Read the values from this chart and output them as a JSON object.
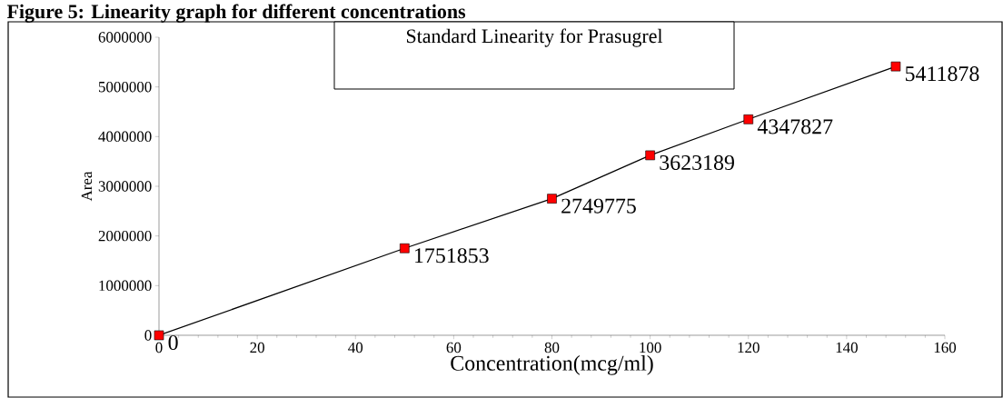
{
  "chart_data": {
    "type": "line",
    "title": "Standard Linearity for Prasugrel",
    "xlabel": "Concentration(mcg/ml)",
    "ylabel": "Area",
    "annotations": [
      "Figure 5: Linearity graph for different concentrations"
    ],
    "x": [
      0,
      50,
      80,
      100,
      120,
      150
    ],
    "series": [
      {
        "color": "#ff0000",
        "values": [
          0,
          1751853,
          2749775,
          3623189,
          4347827,
          5411878
        ]
      }
    ],
    "xlim": [
      0,
      160
    ],
    "xticks": [
      0,
      20,
      40,
      60,
      80,
      100,
      120,
      140,
      160
    ],
    "ylim": [
      0,
      6000000
    ],
    "yticks": [
      0,
      1000000,
      2000000,
      3000000,
      4000000,
      5000000,
      6000000
    ],
    "marker": "square",
    "line_style": "solid",
    "data_labels": true,
    "grid": false,
    "legend": false
  }
}
